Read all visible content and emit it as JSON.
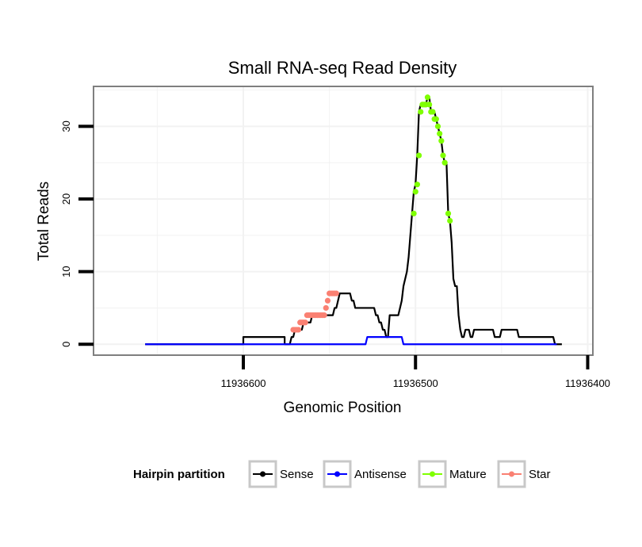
{
  "chart_data": {
    "type": "line",
    "title": "Small RNA-seq Read Density",
    "xlabel": "Genomic Position",
    "ylabel": "Total Reads",
    "xlim": [
      11936687,
      11936397
    ],
    "x_reversed": true,
    "ylim": [
      -1.5,
      35.5
    ],
    "x_ticks": [
      11936600,
      11936500,
      11936400
    ],
    "x_tick_labels": [
      "11936600",
      "11936500",
      "11936400"
    ],
    "y_ticks": [
      0,
      10,
      20,
      30
    ],
    "y_tick_labels": [
      "0",
      "10",
      "20",
      "30"
    ],
    "grid": true,
    "legend": {
      "title": "Hairpin partition",
      "position": "bottom",
      "entries": [
        "Sense",
        "Antisense",
        "Mature",
        "Star"
      ]
    },
    "colors": {
      "Sense": "#000000",
      "Antisense": "#0000ff",
      "Mature": "#7fff00",
      "Star": "#fa8072"
    },
    "series": [
      {
        "name": "Sense",
        "style": "line",
        "points": [
          [
            11936657,
            0
          ],
          [
            11936600,
            0
          ],
          [
            11936600,
            1
          ],
          [
            11936576,
            1
          ],
          [
            11936576,
            0
          ],
          [
            11936573,
            0
          ],
          [
            11936572,
            1
          ],
          [
            11936571,
            1
          ],
          [
            11936570,
            2
          ],
          [
            11936566,
            2
          ],
          [
            11936565,
            3
          ],
          [
            11936561,
            3
          ],
          [
            11936560,
            4
          ],
          [
            11936548,
            4
          ],
          [
            11936547,
            5
          ],
          [
            11936546,
            5
          ],
          [
            11936545,
            6
          ],
          [
            11936544,
            7
          ],
          [
            11936538,
            7
          ],
          [
            11936537,
            6
          ],
          [
            11936536,
            6
          ],
          [
            11936535,
            5
          ],
          [
            11936524,
            5
          ],
          [
            11936523,
            4
          ],
          [
            11936522,
            4
          ],
          [
            11936521,
            3
          ],
          [
            11936520,
            3
          ],
          [
            11936519,
            2
          ],
          [
            11936518,
            2
          ],
          [
            11936517,
            1
          ],
          [
            11936516,
            1
          ],
          [
            11936515,
            4
          ],
          [
            11936510,
            4
          ],
          [
            11936509,
            5
          ],
          [
            11936508,
            6
          ],
          [
            11936507,
            8
          ],
          [
            11936506,
            9
          ],
          [
            11936505,
            10
          ],
          [
            11936504,
            12
          ],
          [
            11936503,
            15
          ],
          [
            11936502,
            18
          ],
          [
            11936501,
            21
          ],
          [
            11936500,
            22
          ],
          [
            11936499,
            26
          ],
          [
            11936498,
            32
          ],
          [
            11936497,
            33
          ],
          [
            11936494,
            33
          ],
          [
            11936493,
            34
          ],
          [
            11936492,
            34
          ],
          [
            11936491,
            32
          ],
          [
            11936489,
            32
          ],
          [
            11936488,
            31
          ],
          [
            11936487,
            30
          ],
          [
            11936486,
            29
          ],
          [
            11936485,
            28
          ],
          [
            11936484,
            26
          ],
          [
            11936483,
            25
          ],
          [
            11936482,
            25
          ],
          [
            11936481,
            18
          ],
          [
            11936480,
            17
          ],
          [
            11936479,
            14
          ],
          [
            11936478,
            9
          ],
          [
            11936477,
            8
          ],
          [
            11936476,
            8
          ],
          [
            11936475,
            4
          ],
          [
            11936474,
            2
          ],
          [
            11936473,
            1
          ],
          [
            11936472,
            1
          ],
          [
            11936471,
            2
          ],
          [
            11936469,
            2
          ],
          [
            11936468,
            1
          ],
          [
            11936467,
            1
          ],
          [
            11936466,
            2
          ],
          [
            11936455,
            2
          ],
          [
            11936454,
            1
          ],
          [
            11936451,
            1
          ],
          [
            11936450,
            2
          ],
          [
            11936441,
            2
          ],
          [
            11936440,
            1
          ],
          [
            11936420,
            1
          ],
          [
            11936419,
            0
          ],
          [
            11936415,
            0
          ]
        ]
      },
      {
        "name": "Antisense",
        "style": "line",
        "points": [
          [
            11936657,
            0
          ],
          [
            11936529,
            0
          ],
          [
            11936528,
            1
          ],
          [
            11936508,
            1
          ],
          [
            11936507,
            0
          ],
          [
            11936418,
            0
          ]
        ]
      },
      {
        "name": "Mature",
        "style": "points",
        "points": [
          [
            11936501,
            18
          ],
          [
            11936500,
            21
          ],
          [
            11936499,
            22
          ],
          [
            11936498,
            26
          ],
          [
            11936497,
            32
          ],
          [
            11936496,
            33
          ],
          [
            11936495,
            33
          ],
          [
            11936494,
            33
          ],
          [
            11936493,
            34
          ],
          [
            11936492,
            33
          ],
          [
            11936491,
            32
          ],
          [
            11936490,
            32
          ],
          [
            11936489,
            31
          ],
          [
            11936488,
            31
          ],
          [
            11936487,
            30
          ],
          [
            11936486,
            29
          ],
          [
            11936485,
            28
          ],
          [
            11936484,
            26
          ],
          [
            11936483,
            25
          ],
          [
            11936481,
            18
          ],
          [
            11936480,
            17
          ]
        ]
      },
      {
        "name": "Star",
        "style": "points",
        "points": [
          [
            11936571,
            2
          ],
          [
            11936570,
            2
          ],
          [
            11936569,
            2
          ],
          [
            11936568,
            2
          ],
          [
            11936567,
            3
          ],
          [
            11936566,
            3
          ],
          [
            11936565,
            3
          ],
          [
            11936564,
            3
          ],
          [
            11936563,
            4
          ],
          [
            11936562,
            4
          ],
          [
            11936561,
            4
          ],
          [
            11936560,
            4
          ],
          [
            11936559,
            4
          ],
          [
            11936558,
            4
          ],
          [
            11936557,
            4
          ],
          [
            11936556,
            4
          ],
          [
            11936555,
            4
          ],
          [
            11936554,
            4
          ],
          [
            11936553,
            4
          ],
          [
            11936552,
            5
          ],
          [
            11936551,
            6
          ],
          [
            11936550,
            7
          ],
          [
            11936549,
            7
          ],
          [
            11936548,
            7
          ],
          [
            11936547,
            7
          ],
          [
            11936546,
            7
          ]
        ]
      }
    ]
  }
}
